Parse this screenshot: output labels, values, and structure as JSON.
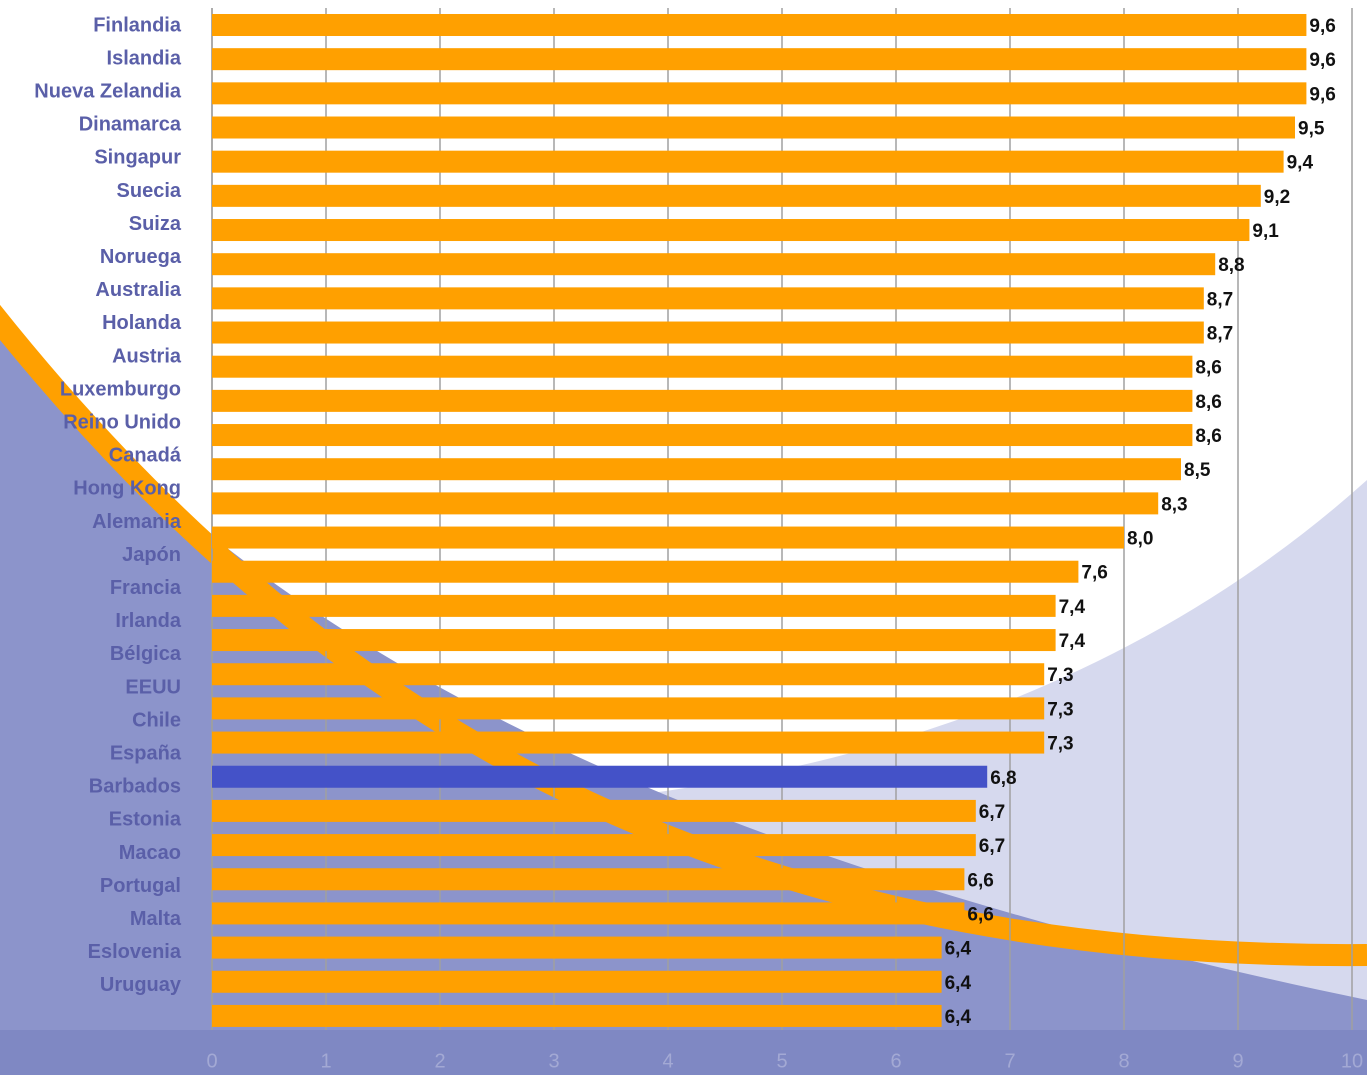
{
  "chart_data": {
    "type": "hbar",
    "categories": [
      "Finlandia",
      "Islandia",
      "Nueva Zelandia",
      "Dinamarca",
      "Singapur",
      "Suecia",
      "Suiza",
      "Noruega",
      "Australia",
      "Holanda",
      "Austria",
      "Luxemburgo",
      "Reino Unido",
      "Canadá",
      "Hong Kong",
      "Alemania",
      "Japón",
      "Francia",
      "Irlanda",
      "Bélgica",
      "EEUU",
      "Chile",
      "España",
      "Barbados",
      "Estonia",
      "Macao",
      "Portugal",
      "Malta",
      "Eslovenia",
      "Uruguay"
    ],
    "values": [
      9.6,
      9.6,
      9.6,
      9.5,
      9.4,
      9.2,
      9.1,
      8.8,
      8.7,
      8.7,
      8.6,
      8.6,
      8.6,
      8.5,
      8.3,
      8.0,
      7.6,
      7.4,
      7.4,
      7.3,
      7.3,
      7.3,
      6.8,
      6.7,
      6.7,
      6.6,
      6.6,
      6.4,
      6.4,
      6.4
    ],
    "value_labels": [
      "9,6",
      "9,6",
      "9,6",
      "9,5",
      "9,4",
      "9,2",
      "9,1",
      "8,8",
      "8,7",
      "8,7",
      "8,6",
      "8,6",
      "8,6",
      "8,5",
      "8,3",
      "8,0",
      "7,6",
      "7,4",
      "7,4",
      "7,3",
      "7,3",
      "7,3",
      "6,8",
      "6,7",
      "6,7",
      "6,6",
      "6,6",
      "6,4",
      "6,4",
      "6,4"
    ],
    "colors": [
      "#ffa000",
      "#ffa000",
      "#ffa000",
      "#ffa000",
      "#ffa000",
      "#ffa000",
      "#ffa000",
      "#ffa000",
      "#ffa000",
      "#ffa000",
      "#ffa000",
      "#ffa000",
      "#ffa000",
      "#ffa000",
      "#ffa000",
      "#ffa000",
      "#ffa000",
      "#ffa000",
      "#ffa000",
      "#ffa000",
      "#ffa000",
      "#ffa000",
      "#4452c8",
      "#ffa000",
      "#ffa000",
      "#ffa000",
      "#ffa000",
      "#ffa000",
      "#ffa000",
      "#ffa000"
    ],
    "xlim": [
      0,
      10
    ],
    "xticks": [
      0,
      1,
      2,
      3,
      4,
      5,
      6,
      7,
      8,
      9,
      10
    ],
    "grid": true
  }
}
